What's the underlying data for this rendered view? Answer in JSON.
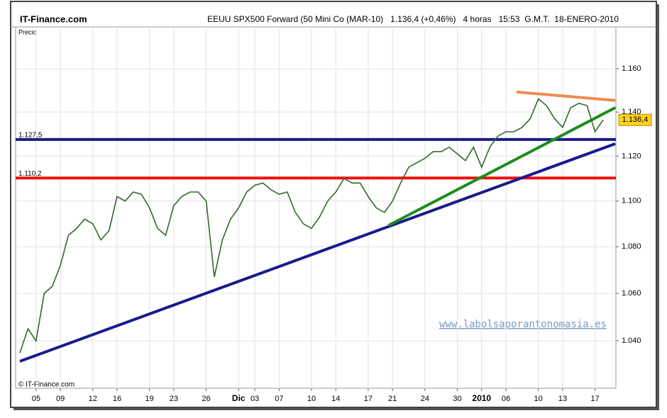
{
  "chart_data": {
    "type": "line",
    "source": "IT-Finance.com",
    "title": "EEUU SPX500 Forward (50 Mini Co (MAR-10)   1.136,4 (+0,46%)   4 horas   15:53  G.M.T.  18-ENERO-2010",
    "y_label": "Precio",
    "copyright": "© IT-Finance.com",
    "watermark": "www.labolsaporantonomasia.es",
    "color": "#2f6a2a",
    "log_scale": true,
    "grid": true,
    "ylim": [
      1.0204,
      1.1796
    ],
    "yticks": [
      {
        "value": 1.04,
        "label": "1.040"
      },
      {
        "value": 1.06,
        "label": "1.060"
      },
      {
        "value": 1.08,
        "label": "1.080"
      },
      {
        "value": 1.1,
        "label": "1.100"
      },
      {
        "value": 1.12,
        "label": "1.120"
      },
      {
        "value": 1.14,
        "label": "1.140"
      },
      {
        "value": 1.16,
        "label": "1.160"
      }
    ],
    "categories": [
      null,
      null,
      "05",
      null,
      null,
      "09",
      null,
      null,
      null,
      "12",
      null,
      null,
      "16",
      null,
      null,
      null,
      "19",
      null,
      null,
      "23",
      null,
      null,
      null,
      "26",
      null,
      null,
      null,
      "Dic",
      null,
      "03",
      null,
      null,
      "07",
      null,
      null,
      null,
      "10",
      null,
      null,
      "14",
      null,
      null,
      null,
      "17",
      null,
      null,
      "21",
      null,
      null,
      null,
      "24",
      null,
      null,
      null,
      "30",
      null,
      null,
      "2010",
      null,
      null,
      "06",
      null,
      null,
      null,
      "10",
      null,
      null,
      "13",
      null,
      null,
      null,
      "17",
      null
    ],
    "values": [
      1.035,
      1.045,
      1.04,
      1.06,
      1.063,
      1.072,
      1.085,
      1.088,
      1.092,
      1.09,
      1.083,
      1.087,
      1.102,
      1.1,
      1.104,
      1.103,
      1.097,
      1.088,
      1.085,
      1.098,
      1.102,
      1.104,
      1.104,
      1.1,
      1.067,
      1.083,
      1.092,
      1.097,
      1.104,
      1.107,
      1.108,
      1.105,
      1.103,
      1.104,
      1.095,
      1.09,
      1.088,
      1.093,
      1.1,
      1.104,
      1.11,
      1.108,
      1.108,
      1.102,
      1.097,
      1.095,
      1.1,
      1.108,
      1.115,
      1.117,
      1.119,
      1.122,
      1.122,
      1.124,
      1.121,
      1.118,
      1.124,
      1.115,
      1.124,
      1.129,
      1.131,
      1.131,
      1.133,
      1.137,
      1.146,
      1.143,
      1.137,
      1.133,
      1.142,
      1.144,
      1.143,
      1.131,
      1.1364
    ],
    "last_price": {
      "value": 1.1364,
      "label": "1.136,4"
    },
    "hlines": [
      {
        "value": 1.1275,
        "label": "1.127,5",
        "color": "#1a1a8c"
      },
      {
        "value": 1.1102,
        "label": "1.110,2",
        "color": "#ee1111"
      }
    ],
    "trendlines": [
      {
        "color": "#1a1a8c",
        "x": [
          0,
          73.5
        ],
        "y": [
          1.0315,
          1.1256
        ]
      },
      {
        "color": "#1e8c1e",
        "x": [
          45.5,
          73.5
        ],
        "y": [
          1.0893,
          1.142
        ]
      },
      {
        "color": "#f08a50",
        "x": [
          61.3,
          73.5
        ],
        "y": [
          1.1492,
          1.1453
        ]
      }
    ]
  }
}
